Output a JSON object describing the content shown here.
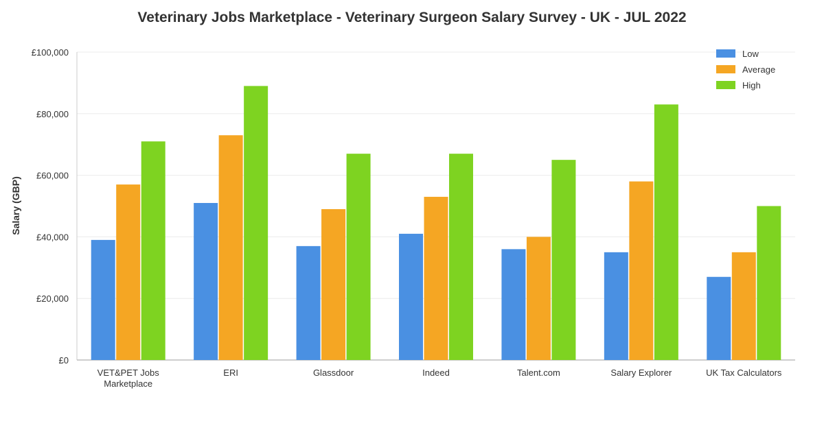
{
  "chart_data": {
    "type": "bar",
    "title": "Veterinary Jobs Marketplace - Veterinary Surgeon Salary Survey - UK - JUL 2022",
    "xlabel": "",
    "ylabel": "Salary (GBP)",
    "ylim": [
      0,
      100000
    ],
    "yticks": [
      "£0",
      "£20,000",
      "£40,000",
      "£60,000",
      "£80,000",
      "£100,000"
    ],
    "ytick_values": [
      0,
      20000,
      40000,
      60000,
      80000,
      100000
    ],
    "grid": true,
    "legend_position": "top-right",
    "categories": [
      [
        "VET&PET Jobs",
        "Marketplace"
      ],
      [
        "ERI"
      ],
      [
        "Glassdoor"
      ],
      [
        "Indeed"
      ],
      [
        "Talent.com"
      ],
      [
        "Salary Explorer"
      ],
      [
        "UK Tax Calculators"
      ]
    ],
    "series": [
      {
        "name": "Low",
        "color": "#4a90e2",
        "values": [
          39000,
          51000,
          37000,
          41000,
          36000,
          35000,
          27000
        ]
      },
      {
        "name": "Average",
        "color": "#f5a623",
        "values": [
          57000,
          73000,
          49000,
          53000,
          40000,
          58000,
          35000
        ]
      },
      {
        "name": "High",
        "color": "#7ed321",
        "values": [
          71000,
          89000,
          67000,
          67000,
          65000,
          83000,
          50000
        ]
      }
    ]
  }
}
